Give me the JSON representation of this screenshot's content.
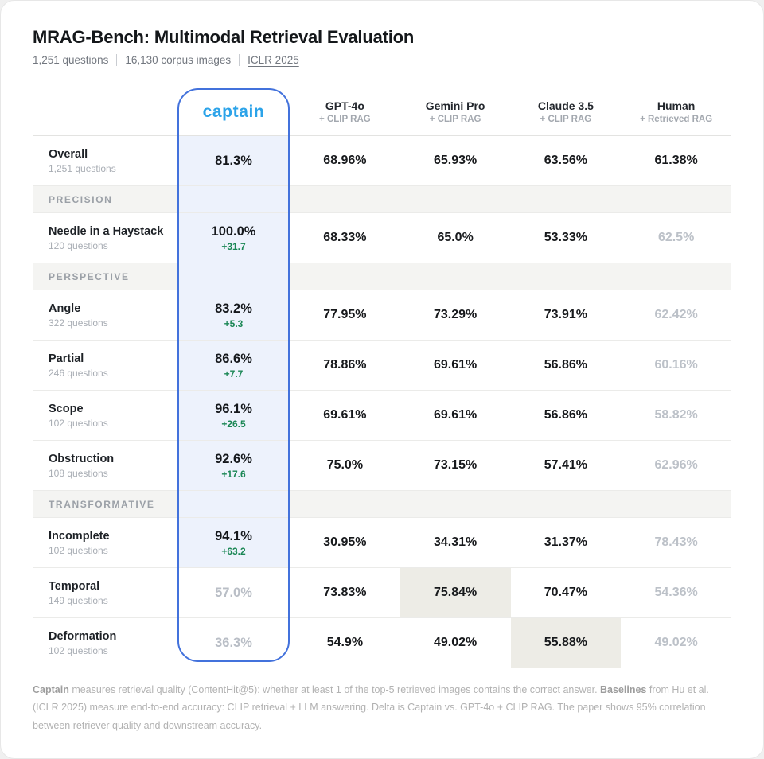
{
  "header": {
    "title": "MRAG-Bench: Multimodal Retrieval Evaluation",
    "meta": [
      {
        "text": "1,251 questions",
        "link": false
      },
      {
        "text": "16,130 corpus images",
        "link": false
      },
      {
        "text": "ICLR 2025",
        "link": true
      }
    ]
  },
  "table": {
    "captain_brand": "captain",
    "columns": [
      {
        "key": "gpt4o",
        "name": "GPT-4o",
        "sub": "+ CLIP RAG"
      },
      {
        "key": "gemini-pro",
        "name": "Gemini Pro",
        "sub": "+ CLIP RAG"
      },
      {
        "key": "claude-35",
        "name": "Claude 3.5",
        "sub": "+ CLIP RAG"
      },
      {
        "key": "human",
        "name": "Human",
        "sub": "+ Retrieved RAG"
      }
    ],
    "rows": [
      {
        "type": "data",
        "label": "Overall",
        "sub": "1,251 questions",
        "captain": {
          "value": "81.3%",
          "delta": "",
          "muted": false
        },
        "values": [
          {
            "v": "68.96%",
            "highlight": false,
            "muted": false
          },
          {
            "v": "65.93%",
            "highlight": false,
            "muted": false
          },
          {
            "v": "63.56%",
            "highlight": false,
            "muted": false
          },
          {
            "v": "61.38%",
            "highlight": false,
            "muted": false
          }
        ]
      },
      {
        "type": "section",
        "label": "PRECISION"
      },
      {
        "type": "data",
        "label": "Needle in a Haystack",
        "sub": "120 questions",
        "captain": {
          "value": "100.0%",
          "delta": "+31.7",
          "muted": false
        },
        "values": [
          {
            "v": "68.33%",
            "highlight": false,
            "muted": false
          },
          {
            "v": "65.0%",
            "highlight": false,
            "muted": false
          },
          {
            "v": "53.33%",
            "highlight": false,
            "muted": false
          },
          {
            "v": "62.5%",
            "highlight": false,
            "muted": true
          }
        ]
      },
      {
        "type": "section",
        "label": "PERSPECTIVE"
      },
      {
        "type": "data",
        "label": "Angle",
        "sub": "322 questions",
        "captain": {
          "value": "83.2%",
          "delta": "+5.3",
          "muted": false
        },
        "values": [
          {
            "v": "77.95%",
            "highlight": false,
            "muted": false
          },
          {
            "v": "73.29%",
            "highlight": false,
            "muted": false
          },
          {
            "v": "73.91%",
            "highlight": false,
            "muted": false
          },
          {
            "v": "62.42%",
            "highlight": false,
            "muted": true
          }
        ]
      },
      {
        "type": "data",
        "label": "Partial",
        "sub": "246 questions",
        "captain": {
          "value": "86.6%",
          "delta": "+7.7",
          "muted": false
        },
        "values": [
          {
            "v": "78.86%",
            "highlight": false,
            "muted": false
          },
          {
            "v": "69.61%",
            "highlight": false,
            "muted": false
          },
          {
            "v": "56.86%",
            "highlight": false,
            "muted": false
          },
          {
            "v": "60.16%",
            "highlight": false,
            "muted": true
          }
        ]
      },
      {
        "type": "data",
        "label": "Scope",
        "sub": "102 questions",
        "captain": {
          "value": "96.1%",
          "delta": "+26.5",
          "muted": false
        },
        "values": [
          {
            "v": "69.61%",
            "highlight": false,
            "muted": false
          },
          {
            "v": "69.61%",
            "highlight": false,
            "muted": false
          },
          {
            "v": "56.86%",
            "highlight": false,
            "muted": false
          },
          {
            "v": "58.82%",
            "highlight": false,
            "muted": true
          }
        ]
      },
      {
        "type": "data",
        "label": "Obstruction",
        "sub": "108 questions",
        "captain": {
          "value": "92.6%",
          "delta": "+17.6",
          "muted": false
        },
        "values": [
          {
            "v": "75.0%",
            "highlight": false,
            "muted": false
          },
          {
            "v": "73.15%",
            "highlight": false,
            "muted": false
          },
          {
            "v": "57.41%",
            "highlight": false,
            "muted": false
          },
          {
            "v": "62.96%",
            "highlight": false,
            "muted": true
          }
        ]
      },
      {
        "type": "section",
        "label": "TRANSFORMATIVE"
      },
      {
        "type": "data",
        "label": "Incomplete",
        "sub": "102 questions",
        "captain": {
          "value": "94.1%",
          "delta": "+63.2",
          "muted": false
        },
        "values": [
          {
            "v": "30.95%",
            "highlight": false,
            "muted": false
          },
          {
            "v": "34.31%",
            "highlight": false,
            "muted": false
          },
          {
            "v": "31.37%",
            "highlight": false,
            "muted": false
          },
          {
            "v": "78.43%",
            "highlight": false,
            "muted": true
          }
        ]
      },
      {
        "type": "data",
        "label": "Temporal",
        "sub": "149 questions",
        "captain": {
          "value": "57.0%",
          "delta": "",
          "muted": true
        },
        "values": [
          {
            "v": "73.83%",
            "highlight": false,
            "muted": false
          },
          {
            "v": "75.84%",
            "highlight": true,
            "muted": false
          },
          {
            "v": "70.47%",
            "highlight": false,
            "muted": false
          },
          {
            "v": "54.36%",
            "highlight": false,
            "muted": true
          }
        ]
      },
      {
        "type": "data",
        "label": "Deformation",
        "sub": "102 questions",
        "captain": {
          "value": "36.3%",
          "delta": "",
          "muted": true
        },
        "values": [
          {
            "v": "54.9%",
            "highlight": false,
            "muted": false
          },
          {
            "v": "49.02%",
            "highlight": false,
            "muted": false
          },
          {
            "v": "55.88%",
            "highlight": true,
            "muted": false
          },
          {
            "v": "49.02%",
            "highlight": false,
            "muted": true
          }
        ]
      }
    ]
  },
  "footnote": {
    "segments": [
      {
        "text": "Captain",
        "bold": true
      },
      {
        "text": " measures retrieval quality (ContentHit@5): whether at least 1 of the top-5 retrieved images contains the correct answer. ",
        "bold": false
      },
      {
        "text": "Baselines",
        "bold": true
      },
      {
        "text": " from Hu et al. (ICLR 2025) measure end-to-end accuracy: CLIP retrieval + LLM answering. Delta is Captain vs. GPT-4o + CLIP RAG. The paper shows 95% correlation between retriever quality and downstream accuracy.",
        "bold": false
      }
    ]
  },
  "colors": {
    "brand_blue": "#2BA3E9",
    "capsule_border": "#4372DC",
    "captain_cell_bg": "#EDF2FC",
    "section_bg": "#F4F4F2",
    "best_baseline_highlight_bg": "#EDECE6",
    "delta_green": "#1B8755",
    "muted_value_gray": "#BCC1C8"
  },
  "chart_data": {
    "type": "table",
    "title": "MRAG-Bench: Multimodal Retrieval Evaluation",
    "subtitle": "1,251 questions | 16,130 corpus images | ICLR 2025",
    "columns": [
      "Captain",
      "GPT-4o + CLIP RAG",
      "Gemini Pro + CLIP RAG",
      "Claude 3.5 + CLIP RAG",
      "Human + Retrieved RAG"
    ],
    "rows": [
      {
        "section": null,
        "category": "Overall",
        "questions": 1251,
        "values": [
          81.3,
          68.96,
          65.93,
          63.56,
          61.38
        ],
        "captain_delta_vs_gpt4o": null
      },
      {
        "section": "Precision",
        "category": "Needle in a Haystack",
        "questions": 120,
        "values": [
          100.0,
          68.33,
          65.0,
          53.33,
          62.5
        ],
        "captain_delta_vs_gpt4o": 31.7
      },
      {
        "section": "Perspective",
        "category": "Angle",
        "questions": 322,
        "values": [
          83.2,
          77.95,
          73.29,
          73.91,
          62.42
        ],
        "captain_delta_vs_gpt4o": 5.3
      },
      {
        "section": "Perspective",
        "category": "Partial",
        "questions": 246,
        "values": [
          86.6,
          78.86,
          69.61,
          56.86,
          60.16
        ],
        "captain_delta_vs_gpt4o": 7.7
      },
      {
        "section": "Perspective",
        "category": "Scope",
        "questions": 102,
        "values": [
          96.1,
          69.61,
          69.61,
          56.86,
          58.82
        ],
        "captain_delta_vs_gpt4o": 26.5
      },
      {
        "section": "Perspective",
        "category": "Obstruction",
        "questions": 108,
        "values": [
          92.6,
          75.0,
          73.15,
          57.41,
          62.96
        ],
        "captain_delta_vs_gpt4o": 17.6
      },
      {
        "section": "Transformative",
        "category": "Incomplete",
        "questions": 102,
        "values": [
          94.1,
          30.95,
          34.31,
          31.37,
          78.43
        ],
        "captain_delta_vs_gpt4o": 63.2
      },
      {
        "section": "Transformative",
        "category": "Temporal",
        "questions": 149,
        "values": [
          57.0,
          73.83,
          75.84,
          70.47,
          54.36
        ],
        "captain_delta_vs_gpt4o": null
      },
      {
        "section": "Transformative",
        "category": "Deformation",
        "questions": 102,
        "values": [
          36.3,
          54.9,
          49.02,
          55.88,
          49.02
        ],
        "captain_delta_vs_gpt4o": null
      }
    ]
  }
}
